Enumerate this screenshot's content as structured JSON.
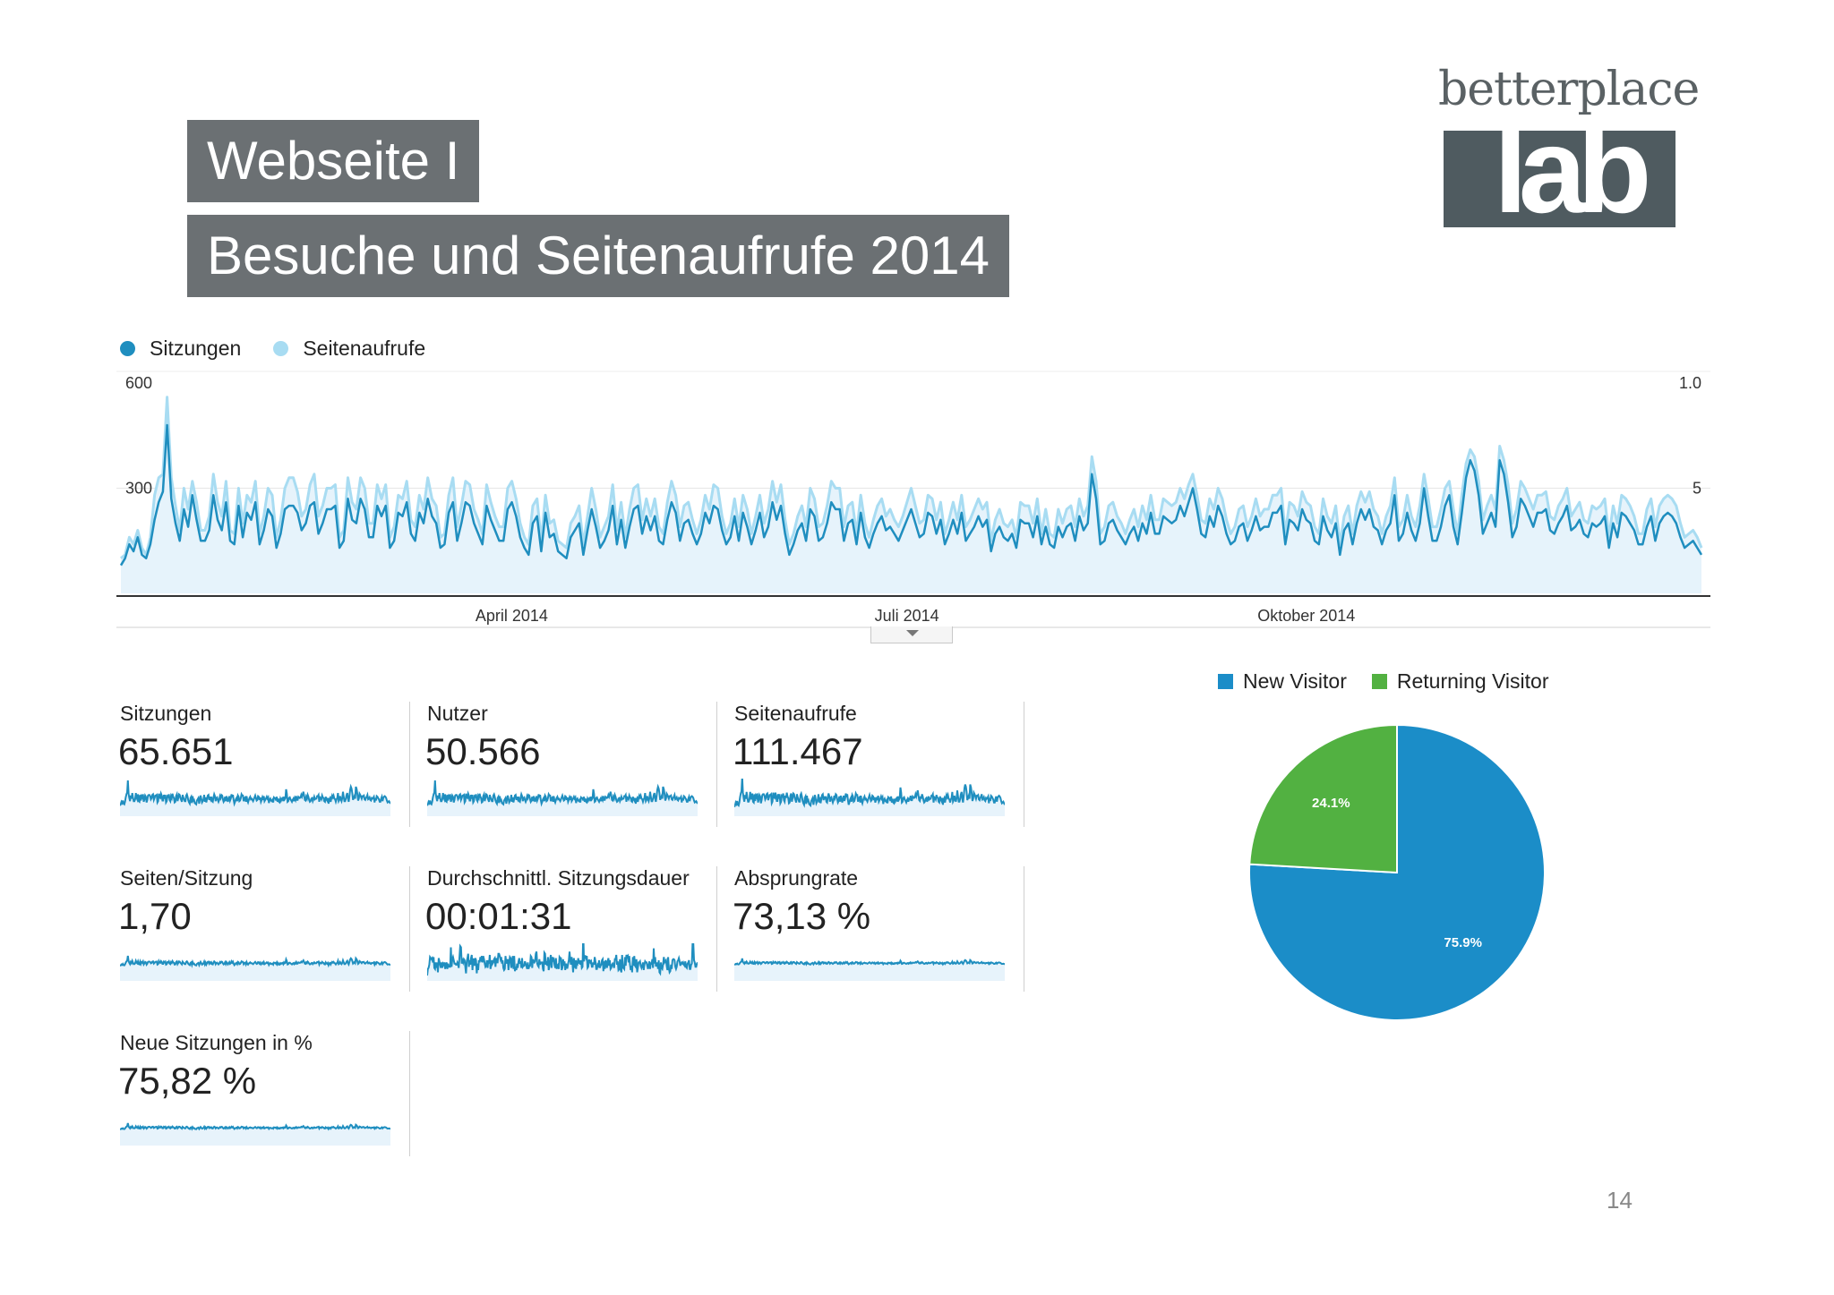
{
  "slide": {
    "title1": "Webseite I",
    "title2": "Besuche und Seitenaufrufe 2014",
    "page_number": "14"
  },
  "logo": {
    "word": "betterplace",
    "mark": "lab"
  },
  "colors": {
    "sessions": "#1f8ebf",
    "pageviews": "#a8dcf2",
    "area": "#e6f3fb",
    "new_visitor": "#1b8dc8",
    "returning_visitor": "#52b141",
    "title_bg": "#6b7073"
  },
  "chart_data": [
    {
      "type": "line",
      "legend": [
        "Sitzungen",
        "Seitenaufrufe"
      ],
      "legend_placement": "top-left",
      "y_left_ticks": [
        "600",
        "300"
      ],
      "y_right_ticks": [
        "1.0",
        "5"
      ],
      "x_tick_labels": [
        "April 2014",
        "Juli 2014",
        "Oktober 2014"
      ],
      "ylim": [
        0,
        600
      ],
      "series": [
        {
          "name": "Sitzungen",
          "values": [
            80,
            100,
            140,
            120,
            160,
            110,
            100,
            140,
            210,
            260,
            290,
            480,
            270,
            200,
            150,
            240,
            190,
            280,
            210,
            150,
            150,
            180,
            280,
            210,
            180,
            260,
            150,
            140,
            250,
            160,
            230,
            210,
            260,
            140,
            180,
            240,
            220,
            130,
            170,
            240,
            250,
            250,
            230,
            180,
            200,
            250,
            260,
            170,
            200,
            240,
            240,
            250,
            130,
            150,
            270,
            210,
            200,
            270,
            240,
            160,
            160,
            250,
            220,
            250,
            130,
            150,
            230,
            220,
            260,
            170,
            150,
            230,
            200,
            270,
            220,
            200,
            130,
            140,
            230,
            260,
            150,
            200,
            260,
            250,
            200,
            170,
            140,
            250,
            210,
            180,
            150,
            150,
            240,
            260,
            220,
            160,
            130,
            110,
            200,
            220,
            120,
            230,
            160,
            170,
            120,
            110,
            100,
            160,
            180,
            200,
            110,
            180,
            240,
            190,
            130,
            150,
            180,
            250,
            140,
            210,
            130,
            190,
            240,
            250,
            170,
            220,
            180,
            220,
            150,
            140,
            210,
            260,
            230,
            150,
            200,
            210,
            170,
            140,
            170,
            230,
            200,
            250,
            240,
            180,
            140,
            160,
            220,
            150,
            230,
            190,
            140,
            180,
            230,
            160,
            190,
            260,
            210,
            250,
            170,
            110,
            140,
            180,
            200,
            150,
            240,
            220,
            150,
            160,
            200,
            260,
            240,
            240,
            150,
            200,
            210,
            140,
            230,
            160,
            130,
            170,
            200,
            220,
            180,
            190,
            170,
            150,
            180,
            210,
            240,
            200,
            160,
            170,
            230,
            220,
            170,
            210,
            140,
            170,
            210,
            170,
            230,
            150,
            170,
            190,
            220,
            190,
            210,
            120,
            170,
            190,
            160,
            150,
            170,
            130,
            210,
            200,
            200,
            160,
            220,
            140,
            190,
            140,
            130,
            190,
            160,
            190,
            200,
            150,
            220,
            180,
            200,
            340,
            270,
            140,
            150,
            200,
            210,
            180,
            160,
            140,
            170,
            190,
            150,
            200,
            170,
            230,
            170,
            170,
            220,
            210,
            200,
            210,
            250,
            220,
            260,
            300,
            240,
            170,
            160,
            220,
            190,
            250,
            220,
            170,
            140,
            150,
            190,
            200,
            150,
            180,
            220,
            180,
            190,
            190,
            230,
            230,
            250,
            140,
            210,
            200,
            180,
            240,
            210,
            200,
            150,
            140,
            220,
            180,
            160,
            200,
            110,
            180,
            200,
            140,
            200,
            240,
            210,
            240,
            190,
            180,
            140,
            180,
            200,
            280,
            150,
            170,
            230,
            180,
            150,
            200,
            300,
            220,
            150,
            150,
            190,
            250,
            280,
            190,
            140,
            230,
            330,
            380,
            350,
            280,
            170,
            200,
            230,
            190,
            380,
            340,
            260,
            160,
            190,
            270,
            250,
            220,
            190,
            230,
            230,
            240,
            180,
            170,
            200,
            220,
            250,
            180,
            190,
            210,
            170,
            160,
            200,
            190,
            200,
            220,
            130,
            200,
            160,
            230,
            220,
            200,
            180,
            140,
            140,
            190,
            220,
            150,
            200,
            220,
            230,
            220,
            200,
            160,
            130,
            140,
            150,
            130,
            110
          ]
        },
        {
          "name": "Seitenaufrufe",
          "values": [
            100,
            110,
            160,
            140,
            180,
            130,
            110,
            160,
            280,
            330,
            340,
            560,
            330,
            250,
            180,
            300,
            240,
            320,
            260,
            180,
            180,
            220,
            340,
            260,
            220,
            320,
            180,
            170,
            300,
            200,
            280,
            260,
            320,
            170,
            220,
            300,
            280,
            160,
            210,
            300,
            330,
            330,
            290,
            220,
            240,
            310,
            340,
            220,
            250,
            300,
            300,
            310,
            160,
            180,
            330,
            260,
            240,
            330,
            300,
            200,
            200,
            310,
            270,
            310,
            160,
            190,
            280,
            270,
            320,
            210,
            190,
            280,
            240,
            330,
            270,
            250,
            160,
            170,
            280,
            330,
            190,
            250,
            320,
            310,
            240,
            210,
            170,
            310,
            260,
            220,
            190,
            190,
            300,
            320,
            270,
            200,
            160,
            140,
            250,
            270,
            150,
            280,
            200,
            210,
            150,
            140,
            130,
            200,
            220,
            250,
            140,
            220,
            300,
            240,
            160,
            190,
            220,
            310,
            180,
            260,
            160,
            240,
            300,
            310,
            210,
            270,
            220,
            270,
            190,
            170,
            260,
            320,
            280,
            190,
            250,
            260,
            210,
            170,
            210,
            280,
            240,
            310,
            300,
            220,
            170,
            200,
            270,
            190,
            280,
            240,
            170,
            220,
            280,
            200,
            240,
            320,
            260,
            310,
            210,
            140,
            170,
            220,
            250,
            190,
            300,
            270,
            190,
            200,
            250,
            320,
            300,
            300,
            190,
            250,
            260,
            170,
            280,
            200,
            160,
            210,
            250,
            270,
            220,
            240,
            210,
            190,
            220,
            260,
            300,
            250,
            200,
            210,
            280,
            270,
            210,
            260,
            170,
            210,
            260,
            210,
            280,
            190,
            210,
            240,
            270,
            240,
            260,
            150,
            210,
            240,
            200,
            190,
            210,
            160,
            260,
            250,
            250,
            200,
            270,
            170,
            240,
            170,
            160,
            240,
            200,
            240,
            250,
            190,
            270,
            220,
            250,
            390,
            320,
            170,
            190,
            250,
            260,
            220,
            200,
            170,
            210,
            240,
            190,
            250,
            210,
            280,
            210,
            210,
            270,
            260,
            250,
            260,
            300,
            270,
            310,
            340,
            280,
            210,
            200,
            270,
            240,
            300,
            270,
            210,
            170,
            190,
            240,
            250,
            190,
            220,
            270,
            220,
            240,
            240,
            280,
            280,
            300,
            170,
            260,
            250,
            220,
            290,
            260,
            250,
            190,
            170,
            270,
            220,
            200,
            250,
            140,
            220,
            250,
            170,
            250,
            290,
            260,
            290,
            240,
            220,
            170,
            220,
            250,
            330,
            190,
            210,
            280,
            220,
            190,
            250,
            340,
            270,
            190,
            190,
            240,
            300,
            320,
            240,
            170,
            280,
            370,
            410,
            390,
            320,
            210,
            250,
            280,
            240,
            420,
            380,
            310,
            200,
            240,
            320,
            300,
            270,
            240,
            280,
            280,
            290,
            220,
            210,
            250,
            270,
            300,
            220,
            240,
            260,
            210,
            200,
            250,
            240,
            250,
            270,
            160,
            250,
            200,
            280,
            270,
            250,
            220,
            170,
            170,
            240,
            270,
            190,
            250,
            270,
            280,
            270,
            250,
            200,
            160,
            170,
            180,
            160,
            130
          ]
        }
      ]
    },
    {
      "type": "pie",
      "legend": [
        "New Visitor",
        "Returning Visitor"
      ],
      "legend_placement": "top",
      "slices": [
        {
          "name": "New Visitor",
          "value": 75.9,
          "label": "75.9%"
        },
        {
          "name": "Returning Visitor",
          "value": 24.1,
          "label": "24.1%"
        }
      ]
    }
  ],
  "metrics": [
    {
      "label": "Sitzungen",
      "value": "65.651"
    },
    {
      "label": "Nutzer",
      "value": "50.566"
    },
    {
      "label": "Seitenaufrufe",
      "value": "111.467"
    },
    {
      "label": "Seiten/Sitzung",
      "value": "1,70"
    },
    {
      "label": "Durchschnittl. Sitzungsdauer",
      "value": "00:01:31"
    },
    {
      "label": "Absprungrate",
      "value": "73,13 %"
    },
    {
      "label": "Neue Sitzungen in %",
      "value": "75,82 %"
    }
  ]
}
